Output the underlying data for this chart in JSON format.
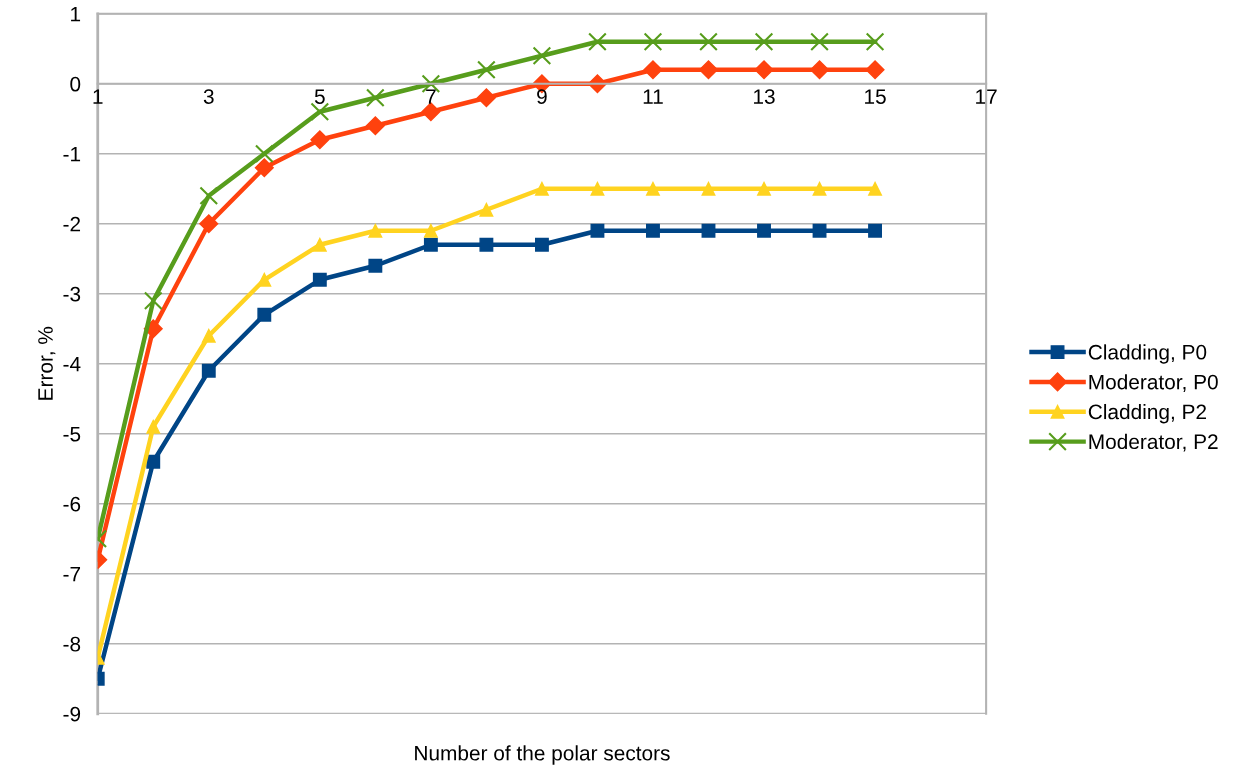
{
  "chart_data": {
    "type": "line",
    "xlabel": "Number of the polar sectors",
    "ylabel": "Error, %",
    "x": [
      1,
      2,
      3,
      4,
      5,
      6,
      7,
      8,
      9,
      10,
      11,
      12,
      13,
      14,
      15
    ],
    "xlim": [
      1,
      17
    ],
    "xticks": [
      1,
      3,
      5,
      7,
      9,
      11,
      13,
      15,
      17
    ],
    "ylim": [
      -9,
      1
    ],
    "yticks": [
      -9,
      -8,
      -7,
      -6,
      -5,
      -4,
      -3,
      -2,
      -1,
      0,
      1
    ],
    "grid": "y",
    "legend": "right",
    "series": [
      {
        "name": "Cladding, P0",
        "color": "#004586",
        "marker": "square",
        "values": [
          -8.5,
          -5.4,
          -4.1,
          -3.3,
          -2.8,
          -2.6,
          -2.3,
          -2.3,
          -2.3,
          -2.1,
          -2.1,
          -2.1,
          -2.1,
          -2.1,
          -2.1
        ]
      },
      {
        "name": "Moderator, P0",
        "color": "#ff420e",
        "marker": "diamond",
        "values": [
          -6.8,
          -3.5,
          -2.0,
          -1.2,
          -0.8,
          -0.6,
          -0.4,
          -0.2,
          0,
          0,
          0.2,
          0.2,
          0.2,
          0.2,
          0.2
        ]
      },
      {
        "name": "Cladding, P2",
        "color": "#ffd320",
        "marker": "triangle",
        "values": [
          -8.2,
          -4.9,
          -3.6,
          -2.8,
          -2.3,
          -2.1,
          -2.1,
          -1.8,
          -1.5,
          -1.5,
          -1.5,
          -1.5,
          -1.5,
          -1.5,
          -1.5
        ]
      },
      {
        "name": "Moderator, P2",
        "color": "#579d1c",
        "marker": "cross",
        "values": [
          -6.5,
          -3.1,
          -1.6,
          -1.0,
          -0.4,
          -0.2,
          0,
          0.2,
          0.4,
          0.6,
          0.6,
          0.6,
          0.6,
          0.6,
          0.6
        ]
      }
    ]
  }
}
